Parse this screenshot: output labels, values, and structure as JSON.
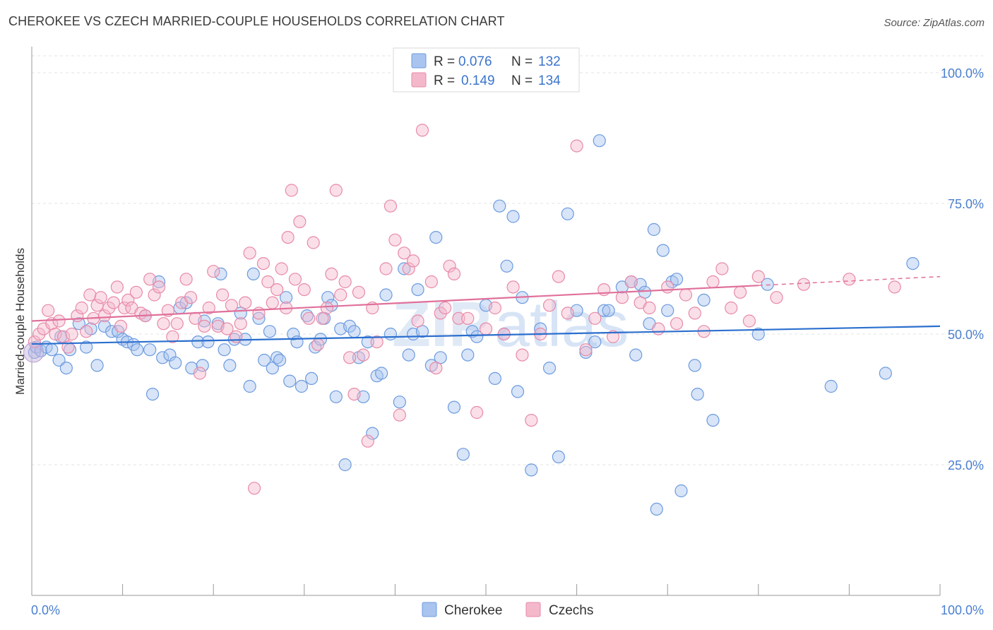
{
  "title": "CHEROKEE VS CZECH MARRIED-COUPLE HOUSEHOLDS CORRELATION CHART",
  "source": "Source: ZipAtlas.com",
  "watermark": {
    "zip": "ZIP",
    "atlas": "atlas"
  },
  "legend_top": [
    {
      "r_label": "R =",
      "r_value": "0.076",
      "n_label": "N =",
      "n_value": "132",
      "color": "#a9c4ee"
    },
    {
      "r_label": "R =",
      "r_value": "0.149",
      "n_label": "N =",
      "n_value": "134",
      "color": "#f4b8cb"
    }
  ],
  "legend_bottom": [
    {
      "label": "Cherokee",
      "color": "#a9c4ee"
    },
    {
      "label": "Czechs",
      "color": "#f4b8cb"
    }
  ],
  "chart_data": {
    "type": "scatter",
    "title": "CHEROKEE VS CZECH MARRIED-COUPLE HOUSEHOLDS CORRELATION CHART",
    "xlabel": "",
    "ylabel": "Married-couple Households",
    "xlim": [
      0,
      100
    ],
    "ylim": [
      0,
      105
    ],
    "x_tick_labels": [
      "0.0%",
      "100.0%"
    ],
    "y_ticks": [
      25,
      50,
      75,
      100
    ],
    "y_tick_labels": [
      "25.0%",
      "50.0%",
      "75.0%",
      "100.0%"
    ],
    "grid": true,
    "legend_position": "top-center",
    "series": [
      {
        "name": "Cherokee",
        "color": "#a9c4ee",
        "stroke": "#6c9be0",
        "trend": {
          "x": [
            0,
            100
          ],
          "y": [
            48.1,
            51.5
          ],
          "color": "#2b6fce"
        },
        "points": [
          [
            0.3,
            46.5
          ],
          [
            0.5,
            47.5
          ],
          [
            1.0,
            46.8
          ],
          [
            1.6,
            47.5
          ],
          [
            2.2,
            47.0
          ],
          [
            3.0,
            45.0
          ],
          [
            3.2,
            49.5
          ],
          [
            3.8,
            43.5
          ],
          [
            4.2,
            47.0
          ],
          [
            5.2,
            52.0
          ],
          [
            6.0,
            47.5
          ],
          [
            6.5,
            51.0
          ],
          [
            7.2,
            44.0
          ],
          [
            8.0,
            51.5
          ],
          [
            8.8,
            50.5
          ],
          [
            9.5,
            50.5
          ],
          [
            10.0,
            49.0
          ],
          [
            10.5,
            48.5
          ],
          [
            11.2,
            48.0
          ],
          [
            11.6,
            47.0
          ],
          [
            12.5,
            53.5
          ],
          [
            13.0,
            47.0
          ],
          [
            13.3,
            38.5
          ],
          [
            14.0,
            60.0
          ],
          [
            14.4,
            45.5
          ],
          [
            15.2,
            46.0
          ],
          [
            15.8,
            44.5
          ],
          [
            16.3,
            55.0
          ],
          [
            17.0,
            56.0
          ],
          [
            17.6,
            43.5
          ],
          [
            18.3,
            48.5
          ],
          [
            18.8,
            44.0
          ],
          [
            19.0,
            52.5
          ],
          [
            19.4,
            48.5
          ],
          [
            20.5,
            52.0
          ],
          [
            20.8,
            61.5
          ],
          [
            21.2,
            47.0
          ],
          [
            21.8,
            44.0
          ],
          [
            22.3,
            49.0
          ],
          [
            23.0,
            54.0
          ],
          [
            23.5,
            49.0
          ],
          [
            24.0,
            40.0
          ],
          [
            24.4,
            61.5
          ],
          [
            25.0,
            53.0
          ],
          [
            25.6,
            45.0
          ],
          [
            26.2,
            50.5
          ],
          [
            26.5,
            43.5
          ],
          [
            27.0,
            45.5
          ],
          [
            27.3,
            45.0
          ],
          [
            28.0,
            57.0
          ],
          [
            28.4,
            41.0
          ],
          [
            28.8,
            50.0
          ],
          [
            29.2,
            48.5
          ],
          [
            29.7,
            40.0
          ],
          [
            30.3,
            53.5
          ],
          [
            30.8,
            41.5
          ],
          [
            31.2,
            47.5
          ],
          [
            31.8,
            49.0
          ],
          [
            32.2,
            53.0
          ],
          [
            32.6,
            57.0
          ],
          [
            33.0,
            55.5
          ],
          [
            33.5,
            38.0
          ],
          [
            34.0,
            51.0
          ],
          [
            34.5,
            25.0
          ],
          [
            35.0,
            51.5
          ],
          [
            35.5,
            50.5
          ],
          [
            36.0,
            45.5
          ],
          [
            36.5,
            38.0
          ],
          [
            37.0,
            48.5
          ],
          [
            37.5,
            31.0
          ],
          [
            38.0,
            42.0
          ],
          [
            38.5,
            42.5
          ],
          [
            39.0,
            57.5
          ],
          [
            39.5,
            50.0
          ],
          [
            40.5,
            37.0
          ],
          [
            41.0,
            62.5
          ],
          [
            41.5,
            46.0
          ],
          [
            42.0,
            50.0
          ],
          [
            42.5,
            58.5
          ],
          [
            43.0,
            50.5
          ],
          [
            44.0,
            44.0
          ],
          [
            44.5,
            68.5
          ],
          [
            45.0,
            45.5
          ],
          [
            46.5,
            36.0
          ],
          [
            47.5,
            27.0
          ],
          [
            48.0,
            46.0
          ],
          [
            48.5,
            50.5
          ],
          [
            49.0,
            49.5
          ],
          [
            50.0,
            55.5
          ],
          [
            51.0,
            41.5
          ],
          [
            51.5,
            74.5
          ],
          [
            52.0,
            50.0
          ],
          [
            52.3,
            63.0
          ],
          [
            53.0,
            72.5
          ],
          [
            53.5,
            39.0
          ],
          [
            54.0,
            57.0
          ],
          [
            55.0,
            24.0
          ],
          [
            56.0,
            51.0
          ],
          [
            57.0,
            43.5
          ],
          [
            58.0,
            26.5
          ],
          [
            59.0,
            73.0
          ],
          [
            60.0,
            54.5
          ],
          [
            61.0,
            46.5
          ],
          [
            62.0,
            48.5
          ],
          [
            62.5,
            87.0
          ],
          [
            63.0,
            54.5
          ],
          [
            63.5,
            54.5
          ],
          [
            65.0,
            59.0
          ],
          [
            66.0,
            60.0
          ],
          [
            66.5,
            46.0
          ],
          [
            67.0,
            59.5
          ],
          [
            67.5,
            58.0
          ],
          [
            68.0,
            52.0
          ],
          [
            68.5,
            70.0
          ],
          [
            68.8,
            16.5
          ],
          [
            69.5,
            66.0
          ],
          [
            70.0,
            54.5
          ],
          [
            70.5,
            60.0
          ],
          [
            71.0,
            60.5
          ],
          [
            71.5,
            20.0
          ],
          [
            73.0,
            44.0
          ],
          [
            73.3,
            38.5
          ],
          [
            74.0,
            56.5
          ],
          [
            75.0,
            33.5
          ],
          [
            80.0,
            50.0
          ],
          [
            81.0,
            59.5
          ],
          [
            88.0,
            40.0
          ],
          [
            94.0,
            42.5
          ],
          [
            97.0,
            63.5
          ]
        ]
      },
      {
        "name": "Czechs",
        "color": "#f4b8cb",
        "stroke": "#e88aa7",
        "trend": {
          "x": [
            0,
            100
          ],
          "y": [
            52.5,
            61.0
          ],
          "color": "#e0709a",
          "solid_until": 80
        },
        "points": [
          [
            0.3,
            48.5
          ],
          [
            0.8,
            50.0
          ],
          [
            1.3,
            51.0
          ],
          [
            1.8,
            54.5
          ],
          [
            2.2,
            52.0
          ],
          [
            2.6,
            50.0
          ],
          [
            3.0,
            52.5
          ],
          [
            3.5,
            49.5
          ],
          [
            4.0,
            47.5
          ],
          [
            4.4,
            50.0
          ],
          [
            5.0,
            53.5
          ],
          [
            5.5,
            55.0
          ],
          [
            6.0,
            50.5
          ],
          [
            6.4,
            57.5
          ],
          [
            6.8,
            53.0
          ],
          [
            7.2,
            55.5
          ],
          [
            7.6,
            57.0
          ],
          [
            8.0,
            53.5
          ],
          [
            8.5,
            55.0
          ],
          [
            9.0,
            56.0
          ],
          [
            9.4,
            59.0
          ],
          [
            9.8,
            51.5
          ],
          [
            10.2,
            55.0
          ],
          [
            10.6,
            56.5
          ],
          [
            11.0,
            55.0
          ],
          [
            11.5,
            58.0
          ],
          [
            12.0,
            54.0
          ],
          [
            12.5,
            53.5
          ],
          [
            13.0,
            60.5
          ],
          [
            13.5,
            57.5
          ],
          [
            14.0,
            59.0
          ],
          [
            14.5,
            52.0
          ],
          [
            15.0,
            54.5
          ],
          [
            15.5,
            49.5
          ],
          [
            16.0,
            52.0
          ],
          [
            16.5,
            56.0
          ],
          [
            17.0,
            60.5
          ],
          [
            17.5,
            57.0
          ],
          [
            18.0,
            53.0
          ],
          [
            18.5,
            42.5
          ],
          [
            19.0,
            51.5
          ],
          [
            19.5,
            55.0
          ],
          [
            20.0,
            62.0
          ],
          [
            20.5,
            51.5
          ],
          [
            21.0,
            57.5
          ],
          [
            21.5,
            51.0
          ],
          [
            22.0,
            55.5
          ],
          [
            22.5,
            49.5
          ],
          [
            23.0,
            52.0
          ],
          [
            23.5,
            56.0
          ],
          [
            24.0,
            65.5
          ],
          [
            24.5,
            20.5
          ],
          [
            25.0,
            54.0
          ],
          [
            25.5,
            63.5
          ],
          [
            26.0,
            60.0
          ],
          [
            26.5,
            56.0
          ],
          [
            27.0,
            58.5
          ],
          [
            27.5,
            62.5
          ],
          [
            28.0,
            55.0
          ],
          [
            28.2,
            68.5
          ],
          [
            28.6,
            77.5
          ],
          [
            29.0,
            60.5
          ],
          [
            29.5,
            71.5
          ],
          [
            30.0,
            58.5
          ],
          [
            30.5,
            53.0
          ],
          [
            31.0,
            67.5
          ],
          [
            31.5,
            48.0
          ],
          [
            32.0,
            53.0
          ],
          [
            32.5,
            55.0
          ],
          [
            33.0,
            61.5
          ],
          [
            33.5,
            77.5
          ],
          [
            34.0,
            57.5
          ],
          [
            34.5,
            60.0
          ],
          [
            35.0,
            45.5
          ],
          [
            35.5,
            38.5
          ],
          [
            36.0,
            58.0
          ],
          [
            36.5,
            46.0
          ],
          [
            37.0,
            29.5
          ],
          [
            37.5,
            55.0
          ],
          [
            38.0,
            48.5
          ],
          [
            39.0,
            62.5
          ],
          [
            39.5,
            74.5
          ],
          [
            40.0,
            68.0
          ],
          [
            40.5,
            34.5
          ],
          [
            41.0,
            65.5
          ],
          [
            41.5,
            62.5
          ],
          [
            42.0,
            64.0
          ],
          [
            42.5,
            52.5
          ],
          [
            43.0,
            89.0
          ],
          [
            44.0,
            60.0
          ],
          [
            44.5,
            43.5
          ],
          [
            45.0,
            54.0
          ],
          [
            45.5,
            55.0
          ],
          [
            46.0,
            63.0
          ],
          [
            46.5,
            61.5
          ],
          [
            47.0,
            53.0
          ],
          [
            48.0,
            53.0
          ],
          [
            49.0,
            35.0
          ],
          [
            50.0,
            51.0
          ],
          [
            51.0,
            55.0
          ],
          [
            52.0,
            50.0
          ],
          [
            53.0,
            59.0
          ],
          [
            54.0,
            46.0
          ],
          [
            55.0,
            33.5
          ],
          [
            56.0,
            50.0
          ],
          [
            57.0,
            55.5
          ],
          [
            58.0,
            61.0
          ],
          [
            59.0,
            54.0
          ],
          [
            60.0,
            86.0
          ],
          [
            61.0,
            47.0
          ],
          [
            62.0,
            53.0
          ],
          [
            63.0,
            58.5
          ],
          [
            64.0,
            49.5
          ],
          [
            65.0,
            57.0
          ],
          [
            66.0,
            60.0
          ],
          [
            67.0,
            56.0
          ],
          [
            68.0,
            55.0
          ],
          [
            69.0,
            51.0
          ],
          [
            70.0,
            59.0
          ],
          [
            71.0,
            52.0
          ],
          [
            72.0,
            57.5
          ],
          [
            73.0,
            54.0
          ],
          [
            74.0,
            50.5
          ],
          [
            75.0,
            60.0
          ],
          [
            76.0,
            62.5
          ],
          [
            77.0,
            55.0
          ],
          [
            78.0,
            58.0
          ],
          [
            79.0,
            52.5
          ],
          [
            80.0,
            61.0
          ],
          [
            82.0,
            57.0
          ],
          [
            85.0,
            59.5
          ],
          [
            90.0,
            60.5
          ],
          [
            95.0,
            59.0
          ]
        ]
      }
    ]
  }
}
